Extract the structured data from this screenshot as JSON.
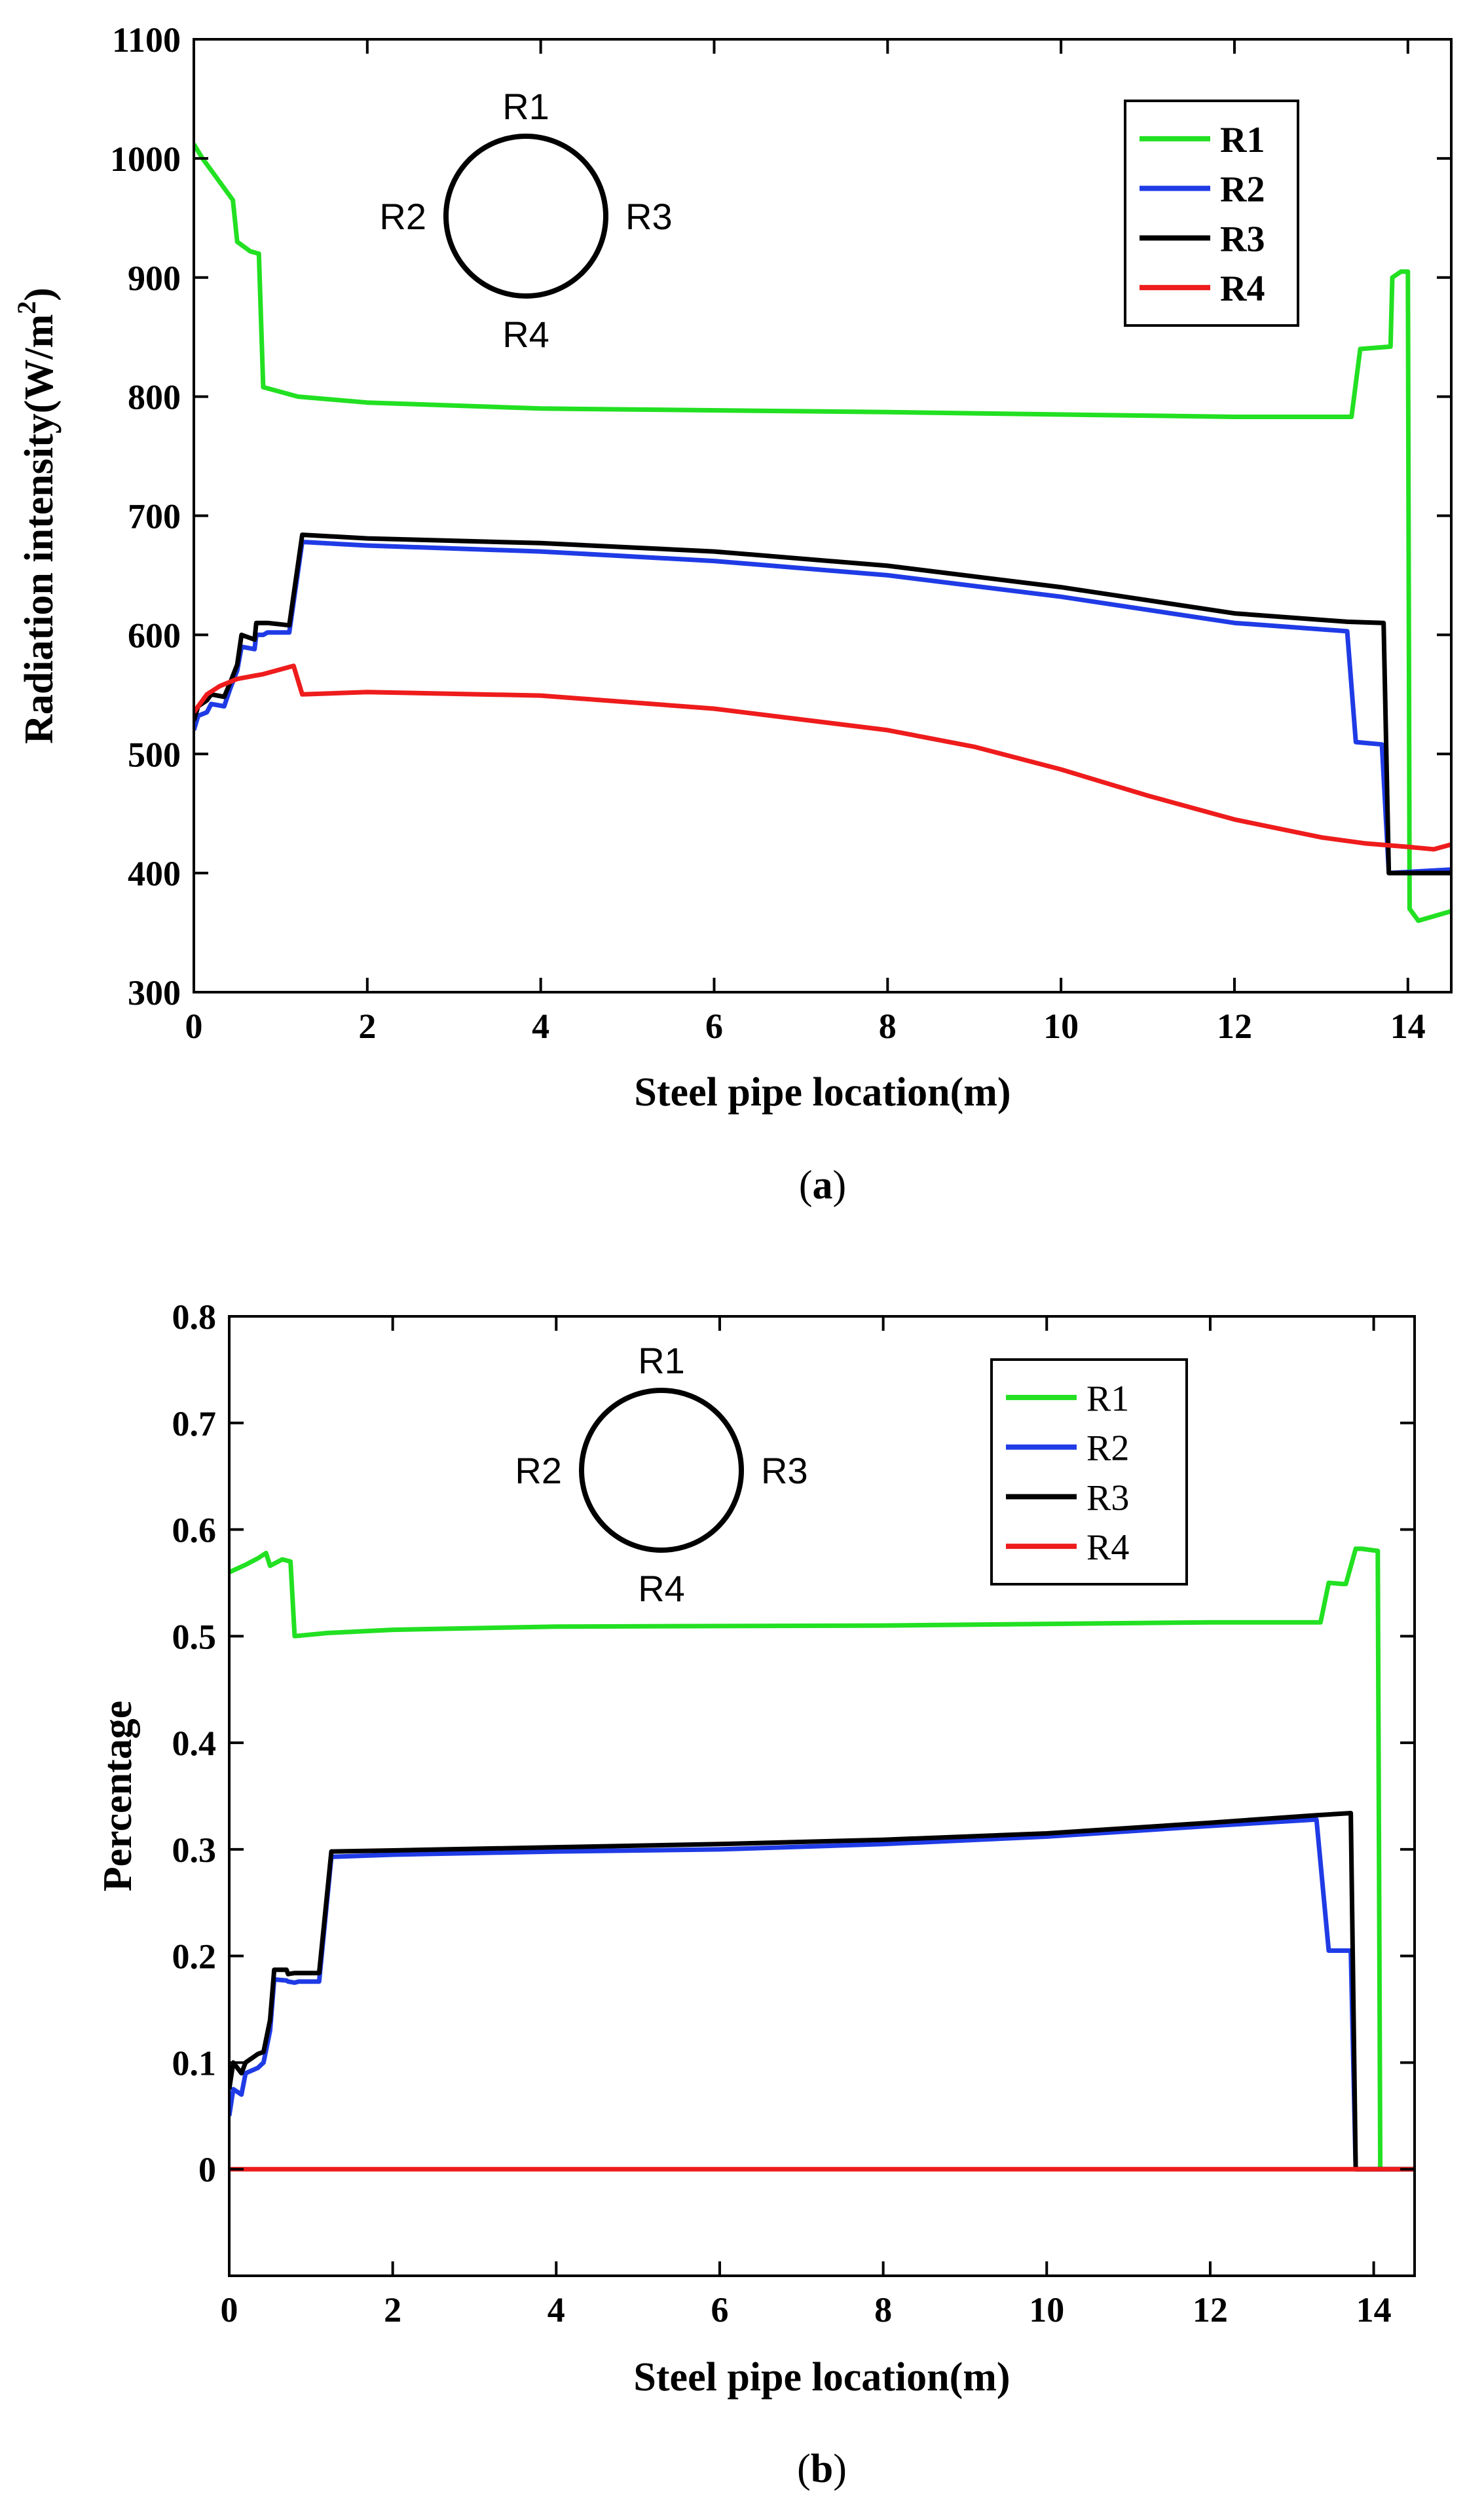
{
  "colors": {
    "R1": "#22e022",
    "R2": "#1f3be6",
    "R3": "#000000",
    "R4": "#ee1c1c"
  },
  "chart_data": [
    {
      "id": "a",
      "type": "line",
      "caption": "a",
      "xlabel": "Steel pipe location(m)",
      "ylabel_main": "Radiation intensity(W/m",
      "ylabel_sup": "2",
      "ylabel_end": ")",
      "xlim": [
        0,
        14.5
      ],
      "ylim": [
        300,
        1100
      ],
      "xticks": [
        0,
        2,
        4,
        6,
        8,
        10,
        12,
        14
      ],
      "yticks": [
        300,
        400,
        500,
        600,
        700,
        800,
        900,
        1000,
        1100
      ],
      "tick_labels_x": [
        "0",
        "2",
        "4",
        "6",
        "8",
        "10",
        "12",
        "14"
      ],
      "tick_labels_y": [
        "300",
        "400",
        "500",
        "600",
        "700",
        "800",
        "900",
        "1000",
        "1100"
      ],
      "legend_bold": true,
      "diagram_labels": {
        "top": "R1",
        "left": "R2",
        "right": "R3",
        "bottom": "R4"
      },
      "series": [
        {
          "name": "R1",
          "x": [
            0,
            0.1,
            0.2,
            0.45,
            0.5,
            0.65,
            0.75,
            0.8,
            1.2,
            2,
            4,
            8,
            12,
            13.35,
            13.45,
            13.8,
            13.82,
            13.92,
            14.0,
            14.02,
            14.12,
            14.5
          ],
          "y": [
            1012,
            1000,
            990,
            965,
            930,
            922,
            920,
            808,
            800,
            795,
            790,
            787,
            783,
            783,
            840,
            842,
            900,
            905,
            905,
            370,
            360,
            368
          ]
        },
        {
          "name": "R2",
          "x": [
            0,
            0.05,
            0.15,
            0.2,
            0.35,
            0.42,
            0.5,
            0.55,
            0.7,
            0.72,
            0.8,
            0.85,
            1.1,
            1.25,
            2,
            4,
            6,
            8,
            10,
            12,
            13.3,
            13.4,
            13.7,
            13.78,
            14.5
          ],
          "y": [
            520,
            532,
            535,
            542,
            540,
            555,
            570,
            590,
            588,
            600,
            600,
            602,
            602,
            678,
            675,
            670,
            662,
            650,
            632,
            610,
            603,
            510,
            508,
            400,
            403
          ]
        },
        {
          "name": "R3",
          "x": [
            0,
            0.05,
            0.15,
            0.2,
            0.35,
            0.42,
            0.5,
            0.55,
            0.7,
            0.72,
            0.8,
            0.85,
            1.1,
            1.25,
            2,
            4,
            6,
            8,
            10,
            12,
            13.3,
            13.72,
            13.78,
            14.5
          ],
          "y": [
            528,
            540,
            545,
            550,
            548,
            560,
            575,
            600,
            596,
            610,
            610,
            610,
            608,
            684,
            681,
            677,
            670,
            658,
            640,
            618,
            611,
            610,
            400,
            400
          ]
        },
        {
          "name": "R4",
          "x": [
            0,
            0.15,
            0.3,
            0.5,
            0.8,
            1.15,
            1.25,
            2,
            4,
            6,
            8,
            9,
            10,
            11,
            12,
            13,
            13.5,
            14.0,
            14.3,
            14.5
          ],
          "y": [
            535,
            550,
            557,
            563,
            567,
            574,
            550,
            552,
            549,
            538,
            520,
            506,
            487,
            465,
            445,
            430,
            425,
            422,
            420,
            424
          ]
        }
      ]
    },
    {
      "id": "b",
      "type": "line",
      "caption": "b",
      "xlabel": "Steel pipe location(m)",
      "ylabel_main": "Percentage",
      "ylabel_sup": "",
      "ylabel_end": "",
      "xlim": [
        0,
        14.5
      ],
      "ylim": [
        -0.1,
        0.8
      ],
      "xticks": [
        0,
        2,
        4,
        6,
        8,
        10,
        12,
        14
      ],
      "yticks": [
        0,
        0.1,
        0.2,
        0.3,
        0.4,
        0.5,
        0.6,
        0.7,
        0.8
      ],
      "tick_labels_x": [
        "0",
        "2",
        "4",
        "6",
        "8",
        "10",
        "12",
        "14"
      ],
      "tick_labels_y": [
        "0",
        "0.1",
        "0.2",
        "0.3",
        "0.4",
        "0.5",
        "0.6",
        "0.7",
        "0.8"
      ],
      "legend_bold": false,
      "diagram_labels": {
        "top": "R1",
        "left": "R2",
        "right": "R3",
        "bottom": "R4"
      },
      "series": [
        {
          "name": "R1",
          "x": [
            0,
            0.2,
            0.35,
            0.45,
            0.5,
            0.65,
            0.75,
            0.8,
            1.2,
            2,
            4,
            8,
            12,
            13.35,
            13.45,
            13.62,
            13.66,
            13.78,
            13.85,
            14.05,
            14.08,
            14.12
          ],
          "y": [
            0.56,
            0.567,
            0.573,
            0.578,
            0.566,
            0.572,
            0.57,
            0.5,
            0.503,
            0.506,
            0.509,
            0.51,
            0.513,
            0.513,
            0.55,
            0.549,
            0.549,
            0.582,
            0.582,
            0.58,
            0,
            0
          ]
        },
        {
          "name": "R2",
          "x": [
            0,
            0.05,
            0.15,
            0.2,
            0.35,
            0.42,
            0.5,
            0.55,
            0.7,
            0.72,
            0.8,
            0.85,
            1.1,
            1.25,
            2,
            4,
            6,
            8,
            10,
            12,
            13.3,
            13.45,
            13.72,
            13.78,
            14.5
          ],
          "y": [
            0.05,
            0.075,
            0.07,
            0.09,
            0.095,
            0.1,
            0.13,
            0.178,
            0.177,
            0.176,
            0.175,
            0.176,
            0.176,
            0.293,
            0.295,
            0.298,
            0.3,
            0.305,
            0.312,
            0.322,
            0.328,
            0.205,
            0.205,
            0,
            0
          ]
        },
        {
          "name": "R3",
          "x": [
            0,
            0.05,
            0.15,
            0.2,
            0.35,
            0.42,
            0.5,
            0.55,
            0.7,
            0.72,
            0.8,
            0.85,
            1.1,
            1.25,
            2,
            4,
            6,
            8,
            10,
            12,
            13.3,
            13.72,
            13.78,
            14.5
          ],
          "y": [
            0.075,
            0.1,
            0.09,
            0.1,
            0.108,
            0.11,
            0.14,
            0.187,
            0.187,
            0.183,
            0.184,
            0.184,
            0.184,
            0.298,
            0.299,
            0.302,
            0.305,
            0.309,
            0.315,
            0.325,
            0.332,
            0.334,
            0,
            0
          ]
        },
        {
          "name": "R4",
          "x": [
            0,
            14.5
          ],
          "y": [
            0,
            0
          ]
        }
      ]
    }
  ]
}
